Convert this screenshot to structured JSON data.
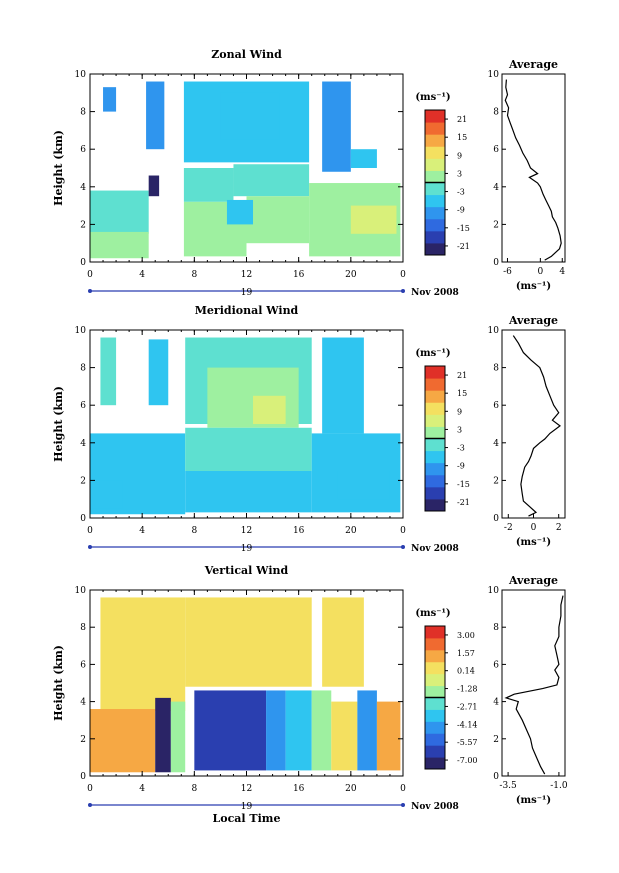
{
  "figure": {
    "x_label": "Local Time",
    "date_label": "Nov 2008",
    "day_label": "19"
  },
  "chart_data": [
    {
      "type": "heatmap",
      "title": "Zonal Wind",
      "ylabel": "Height (km)",
      "xlabel": "Local Time",
      "x_ticks": [
        "0",
        "4",
        "8",
        "12",
        "16",
        "20",
        "0"
      ],
      "xlim": [
        0,
        24
      ],
      "y_ticks": [
        "0",
        "2",
        "4",
        "6",
        "8",
        "10"
      ],
      "ylim": [
        0,
        10
      ],
      "colorbar": {
        "unit": "(ms⁻¹)",
        "ticks": [
          "21",
          "15",
          "9",
          "3",
          "-3",
          "-9",
          "-15",
          "-21"
        ],
        "range": [
          -24,
          24
        ]
      },
      "profile": {
        "title": "Average",
        "xlabel": "(ms⁻¹)",
        "x_ticks": [
          "-6",
          "0",
          "4"
        ],
        "xlim": [
          -7,
          4.5
        ],
        "points": [
          [
            -6.2,
            9.7
          ],
          [
            -6.3,
            9.3
          ],
          [
            -6.0,
            8.9
          ],
          [
            -6.4,
            8.6
          ],
          [
            -5.8,
            8.2
          ],
          [
            -6.0,
            7.8
          ],
          [
            -5.5,
            7.4
          ],
          [
            -5.0,
            7.0
          ],
          [
            -4.5,
            6.6
          ],
          [
            -3.8,
            6.2
          ],
          [
            -3.2,
            5.8
          ],
          [
            -2.4,
            5.4
          ],
          [
            -1.8,
            5.0
          ],
          [
            -0.5,
            4.7
          ],
          [
            -2.0,
            4.5
          ],
          [
            -0.5,
            4.2
          ],
          [
            0.0,
            4.0
          ],
          [
            0.5,
            3.6
          ],
          [
            1.0,
            3.3
          ],
          [
            1.5,
            3.0
          ],
          [
            2.0,
            2.7
          ],
          [
            2.2,
            2.4
          ],
          [
            2.8,
            2.1
          ],
          [
            3.2,
            1.8
          ],
          [
            3.6,
            1.4
          ],
          [
            3.8,
            1.0
          ],
          [
            3.5,
            0.7
          ],
          [
            2.0,
            0.3
          ],
          [
            0.8,
            0.1
          ]
        ]
      },
      "field": [
        {
          "t0": 1.0,
          "t1": 2.0,
          "h0": 8.0,
          "h1": 9.3,
          "v": -9
        },
        {
          "t0": 4.3,
          "t1": 5.7,
          "h0": 6.0,
          "h1": 9.6,
          "v": -12
        },
        {
          "t0": 7.2,
          "t1": 16.8,
          "h0": 5.3,
          "h1": 9.6,
          "v": -8
        },
        {
          "t0": 10.0,
          "t1": 14.5,
          "h0": 6.5,
          "h1": 9.0,
          "v": -6
        },
        {
          "t0": 17.8,
          "t1": 20.0,
          "h0": 4.8,
          "h1": 9.6,
          "v": -12
        },
        {
          "t0": 20.0,
          "t1": 22.0,
          "h0": 5.0,
          "h1": 6.0,
          "v": -6
        },
        {
          "t0": 0.0,
          "t1": 4.5,
          "h0": 1.5,
          "h1": 3.8,
          "v": -1
        },
        {
          "t0": 0.0,
          "t1": 4.5,
          "h0": 0.2,
          "h1": 1.6,
          "v": 3
        },
        {
          "t0": 4.5,
          "t1": 5.3,
          "h0": 3.5,
          "h1": 4.6,
          "v": -21
        },
        {
          "t0": 7.2,
          "t1": 11.0,
          "h0": 3.2,
          "h1": 5.0,
          "v": -2
        },
        {
          "t0": 11.0,
          "t1": 16.8,
          "h0": 3.5,
          "h1": 5.2,
          "v": -3
        },
        {
          "t0": 7.2,
          "t1": 12.0,
          "h0": 0.3,
          "h1": 3.2,
          "v": 0
        },
        {
          "t0": 12.0,
          "t1": 16.8,
          "h0": 1.0,
          "h1": 3.5,
          "v": 1
        },
        {
          "t0": 10.5,
          "t1": 12.5,
          "h0": 2.0,
          "h1": 3.3,
          "v": -5
        },
        {
          "t0": 16.8,
          "t1": 23.8,
          "h0": 0.3,
          "h1": 4.2,
          "v": 2
        },
        {
          "t0": 20.0,
          "t1": 23.5,
          "h0": 1.5,
          "h1": 3.0,
          "v": 5
        }
      ]
    },
    {
      "type": "heatmap",
      "title": "Meridional Wind",
      "ylabel": "Height (km)",
      "xlabel": "Local Time",
      "x_ticks": [
        "0",
        "4",
        "8",
        "12",
        "16",
        "20",
        "0"
      ],
      "xlim": [
        0,
        24
      ],
      "y_ticks": [
        "0",
        "2",
        "4",
        "6",
        "8",
        "10"
      ],
      "ylim": [
        0,
        10
      ],
      "colorbar": {
        "unit": "(ms⁻¹)",
        "ticks": [
          "21",
          "15",
          "9",
          "3",
          "-3",
          "-9",
          "-15",
          "-21"
        ],
        "range": [
          -24,
          24
        ]
      },
      "profile": {
        "title": "Average",
        "xlabel": "(ms⁻¹)",
        "x_ticks": [
          "-2",
          "0",
          "2"
        ],
        "xlim": [
          -2.5,
          2.5
        ],
        "points": [
          [
            -1.6,
            9.7
          ],
          [
            -1.2,
            9.3
          ],
          [
            -0.8,
            8.8
          ],
          [
            -0.2,
            8.4
          ],
          [
            0.5,
            8.0
          ],
          [
            0.8,
            7.5
          ],
          [
            1.0,
            7.0
          ],
          [
            1.3,
            6.5
          ],
          [
            1.6,
            6.0
          ],
          [
            2.0,
            5.6
          ],
          [
            1.5,
            5.2
          ],
          [
            2.1,
            4.9
          ],
          [
            1.3,
            4.5
          ],
          [
            0.9,
            4.2
          ],
          [
            0.5,
            4.0
          ],
          [
            0.0,
            3.7
          ],
          [
            -0.2,
            3.3
          ],
          [
            -0.4,
            3.0
          ],
          [
            -0.7,
            2.7
          ],
          [
            -0.9,
            2.2
          ],
          [
            -1.0,
            1.8
          ],
          [
            -0.9,
            1.3
          ],
          [
            -0.8,
            0.9
          ],
          [
            -0.3,
            0.6
          ],
          [
            0.2,
            0.3
          ],
          [
            -0.4,
            0.1
          ]
        ]
      },
      "field": [
        {
          "t0": 0.8,
          "t1": 2.0,
          "h0": 6.0,
          "h1": 9.6,
          "v": -4
        },
        {
          "t0": 4.5,
          "t1": 6.0,
          "h0": 6.0,
          "h1": 9.5,
          "v": -6
        },
        {
          "t0": 7.3,
          "t1": 17.0,
          "h0": 5.0,
          "h1": 9.6,
          "v": -4
        },
        {
          "t0": 9.0,
          "t1": 16.0,
          "h0": 4.8,
          "h1": 8.0,
          "v": 1
        },
        {
          "t0": 12.5,
          "t1": 15.0,
          "h0": 5.0,
          "h1": 6.5,
          "v": 5
        },
        {
          "t0": 17.8,
          "t1": 21.0,
          "h0": 4.5,
          "h1": 9.6,
          "v": -6
        },
        {
          "t0": 0.0,
          "t1": 7.3,
          "h0": 0.2,
          "h1": 4.5,
          "v": -6
        },
        {
          "t0": 0.0,
          "t1": 2.5,
          "h0": 0.5,
          "h1": 2.0,
          "v": -8
        },
        {
          "t0": 7.3,
          "t1": 17.0,
          "h0": 2.5,
          "h1": 4.8,
          "v": -2
        },
        {
          "t0": 7.3,
          "t1": 17.0,
          "h0": 0.3,
          "h1": 2.5,
          "v": -5
        },
        {
          "t0": 17.0,
          "t1": 23.8,
          "h0": 0.3,
          "h1": 4.5,
          "v": -5
        },
        {
          "t0": 19.0,
          "t1": 23.0,
          "h0": 1.0,
          "h1": 2.5,
          "v": -8
        }
      ]
    },
    {
      "type": "heatmap",
      "title": "Vertical Wind",
      "ylabel": "Height (km)",
      "xlabel": "Local Time",
      "x_ticks": [
        "0",
        "4",
        "8",
        "12",
        "16",
        "20",
        "0"
      ],
      "xlim": [
        0,
        24
      ],
      "y_ticks": [
        "0",
        "2",
        "4",
        "6",
        "8",
        "10"
      ],
      "ylim": [
        0,
        10
      ],
      "colorbar": {
        "unit": "(ms⁻¹)",
        "ticks": [
          "3.00",
          "1.57",
          "0.14",
          "-1.28",
          "-2.71",
          "-4.14",
          "-5.57",
          "-7.00"
        ],
        "range": [
          -7.7,
          3.7
        ]
      },
      "profile": {
        "title": "Average",
        "xlabel": "(ms⁻¹)",
        "x_ticks": [
          "-3.5",
          "-1.0"
        ],
        "xlim": [
          -3.8,
          -0.7
        ],
        "points": [
          [
            -0.8,
            9.7
          ],
          [
            -0.9,
            9.2
          ],
          [
            -0.9,
            8.6
          ],
          [
            -1.0,
            8.0
          ],
          [
            -1.0,
            7.5
          ],
          [
            -1.2,
            7.0
          ],
          [
            -1.1,
            6.5
          ],
          [
            -1.0,
            6.0
          ],
          [
            -1.2,
            5.7
          ],
          [
            -1.0,
            5.3
          ],
          [
            -1.1,
            4.9
          ],
          [
            -1.8,
            4.7
          ],
          [
            -3.2,
            4.4
          ],
          [
            -3.6,
            4.2
          ],
          [
            -3.0,
            4.0
          ],
          [
            -3.1,
            3.6
          ],
          [
            -2.8,
            3.0
          ],
          [
            -2.6,
            2.5
          ],
          [
            -2.4,
            2.0
          ],
          [
            -2.3,
            1.5
          ],
          [
            -2.1,
            1.0
          ],
          [
            -1.9,
            0.5
          ],
          [
            -1.7,
            0.1
          ]
        ]
      },
      "field": [
        {
          "t0": 0.8,
          "t1": 7.3,
          "h0": 3.5,
          "h1": 9.6,
          "v": 0.6
        },
        {
          "t0": 7.3,
          "t1": 17.0,
          "h0": 4.8,
          "h1": 9.6,
          "v": 0.4
        },
        {
          "t0": 17.8,
          "t1": 21.0,
          "h0": 4.8,
          "h1": 9.6,
          "v": 0.5
        },
        {
          "t0": 0.0,
          "t1": 5.0,
          "h0": 0.2,
          "h1": 3.6,
          "v": 1.3
        },
        {
          "t0": 5.0,
          "t1": 6.2,
          "h0": 0.2,
          "h1": 4.2,
          "v": -7.0
        },
        {
          "t0": 6.2,
          "t1": 7.3,
          "h0": 0.2,
          "h1": 4.0,
          "v": -1.5
        },
        {
          "t0": 8.0,
          "t1": 13.5,
          "h0": 0.3,
          "h1": 4.6,
          "v": -6.2
        },
        {
          "t0": 13.5,
          "t1": 15.0,
          "h0": 0.3,
          "h1": 4.6,
          "v": -4.5
        },
        {
          "t0": 15.0,
          "t1": 17.0,
          "h0": 0.3,
          "h1": 4.6,
          "v": -3.0
        },
        {
          "t0": 17.0,
          "t1": 18.5,
          "h0": 0.3,
          "h1": 4.6,
          "v": -2.0
        },
        {
          "t0": 18.5,
          "t1": 20.5,
          "h0": 0.3,
          "h1": 4.0,
          "v": 0.5
        },
        {
          "t0": 20.5,
          "t1": 22.0,
          "h0": 0.3,
          "h1": 4.6,
          "v": -4.0
        },
        {
          "t0": 22.0,
          "t1": 23.8,
          "h0": 0.3,
          "h1": 4.0,
          "v": 1.0
        }
      ]
    }
  ]
}
